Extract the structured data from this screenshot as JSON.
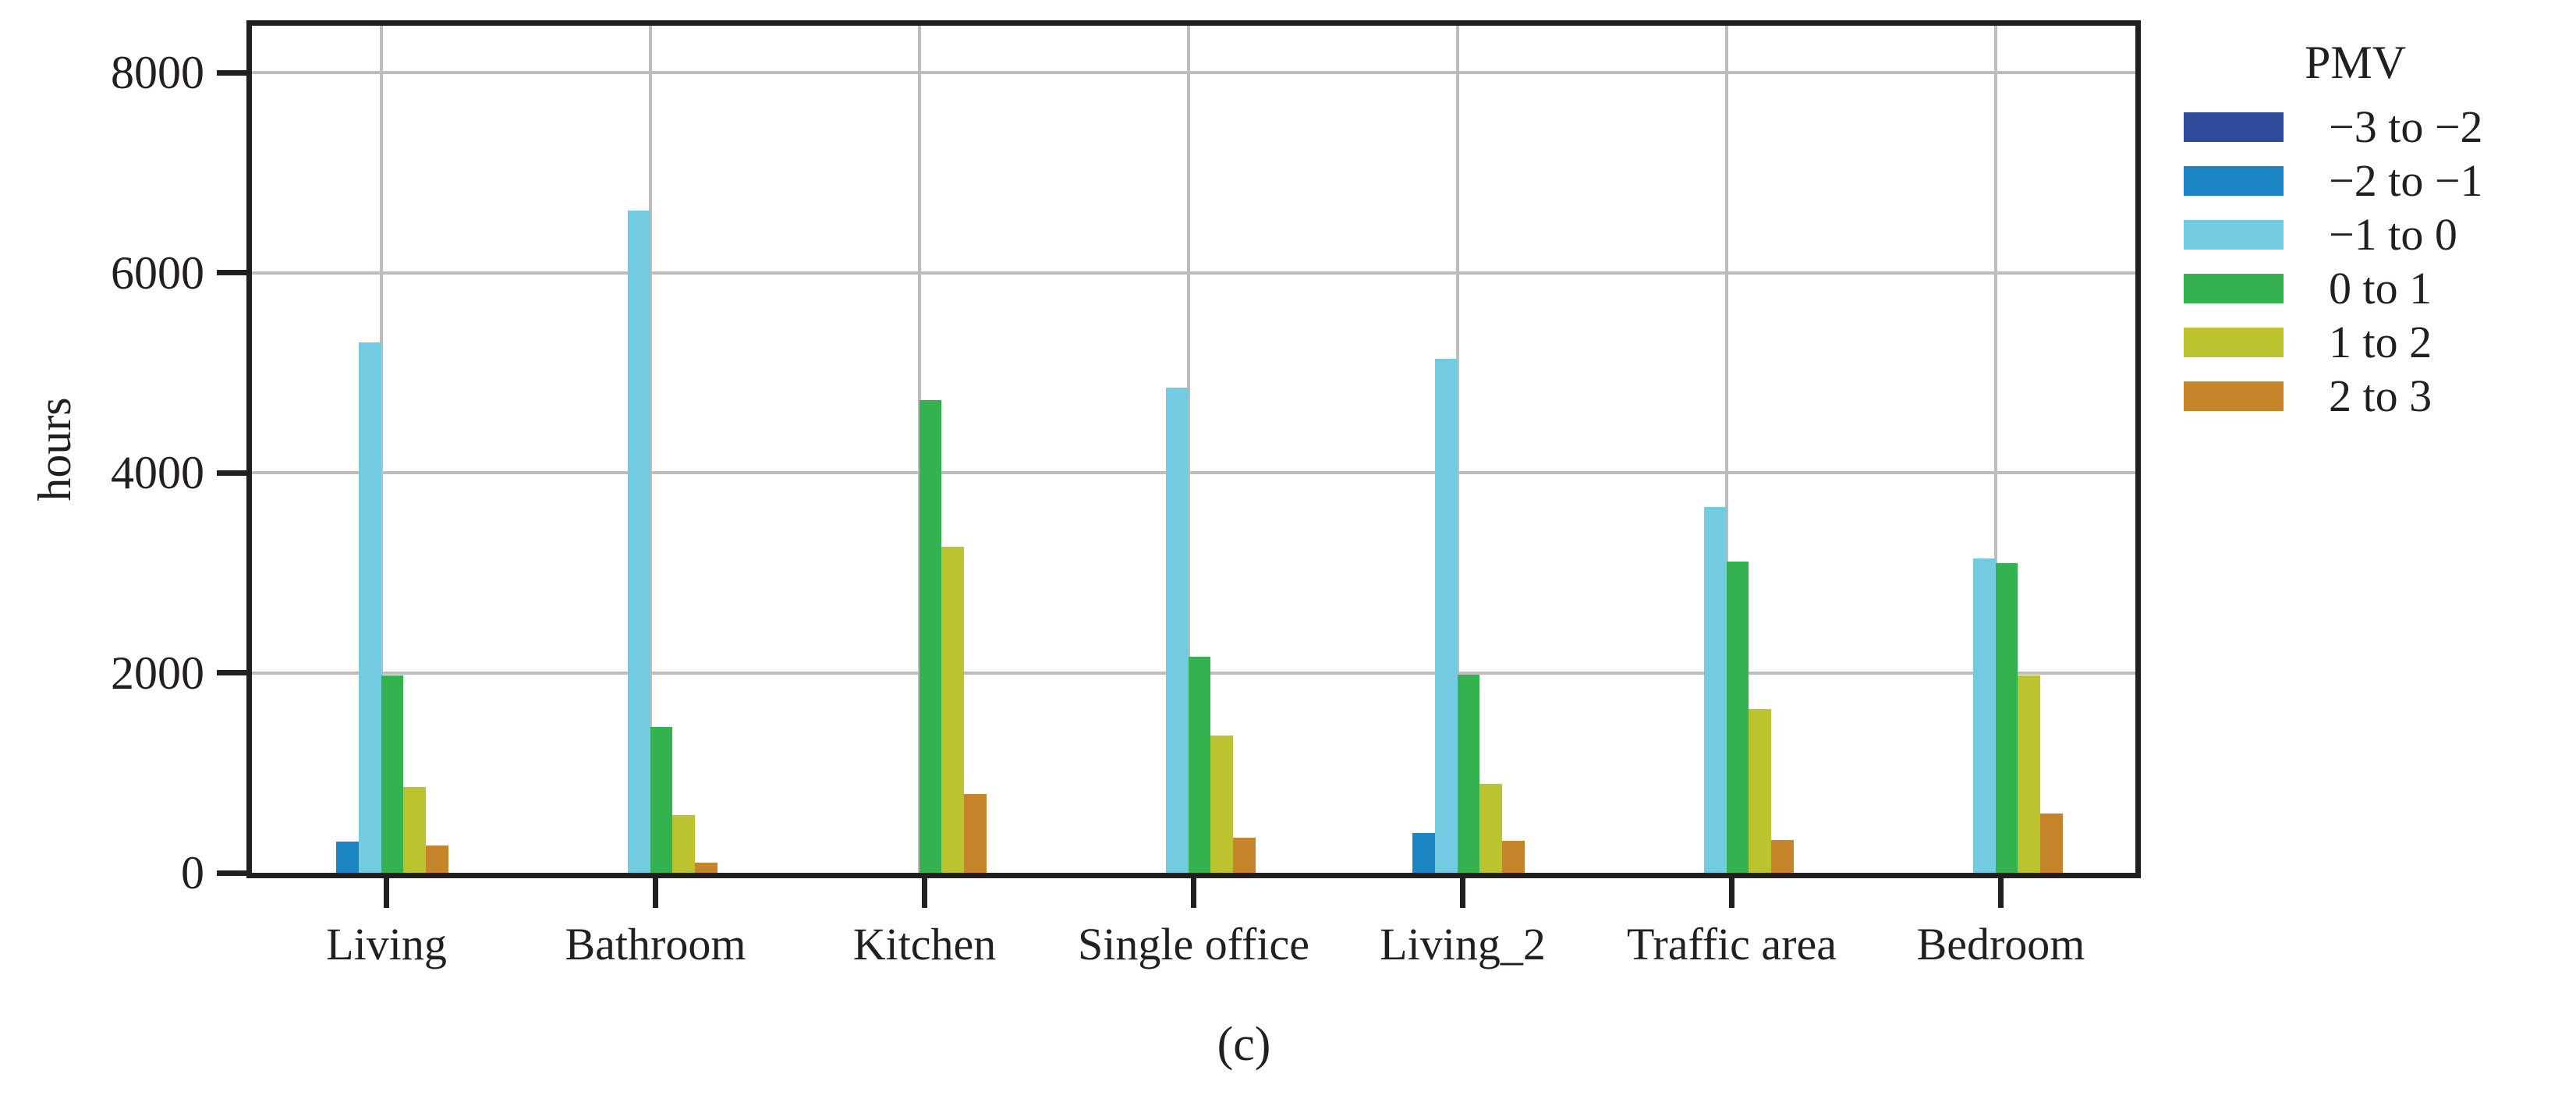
{
  "chart_data": {
    "type": "bar",
    "caption": "(c)",
    "ylabel": "hours",
    "legend_title": "PMV",
    "legend_position": "right-outside",
    "grid": true,
    "ylim": [
      0,
      8470
    ],
    "yticks": [
      0,
      2000,
      4000,
      6000,
      8000
    ],
    "categories": [
      "Living",
      "Bathroom",
      "Kitchen",
      "Single office",
      "Living_2",
      "Traffic area",
      "Bedroom"
    ],
    "series": [
      {
        "name": "−3 to −2",
        "color": "#2d4a9b",
        "values": [
          0,
          0,
          0,
          0,
          0,
          0,
          0
        ]
      },
      {
        "name": "−2 to −1",
        "color": "#1b85c4",
        "values": [
          310,
          0,
          0,
          0,
          400,
          0,
          0
        ]
      },
      {
        "name": "−1 to 0",
        "color": "#73cbe1",
        "values": [
          5300,
          6620,
          0,
          4850,
          5140,
          3660,
          3140
        ]
      },
      {
        "name": "0 to 1",
        "color": "#34b24f",
        "values": [
          1970,
          1460,
          4730,
          2160,
          1980,
          3110,
          3100
        ]
      },
      {
        "name": "1 to 2",
        "color": "#bbc32f",
        "values": [
          860,
          580,
          3260,
          1370,
          890,
          1640,
          1970
        ]
      },
      {
        "name": "2 to 3",
        "color": "#c6852a",
        "values": [
          270,
          100,
          790,
          350,
          320,
          330,
          590
        ]
      }
    ],
    "axis_color": "#231f20",
    "grid_color": "#bdbdbd"
  }
}
